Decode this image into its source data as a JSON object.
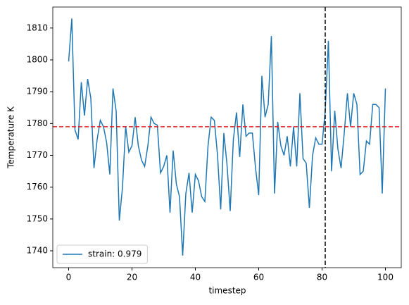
{
  "chart_data": {
    "type": "line",
    "xlabel": "timestep",
    "ylabel": "Temperature K",
    "x": [
      0,
      1,
      2,
      3,
      4,
      5,
      6,
      7,
      8,
      9,
      10,
      11,
      12,
      13,
      14,
      15,
      16,
      17,
      18,
      19,
      20,
      21,
      22,
      23,
      24,
      25,
      26,
      27,
      28,
      29,
      30,
      31,
      32,
      33,
      34,
      35,
      36,
      37,
      38,
      39,
      40,
      41,
      42,
      43,
      44,
      45,
      46,
      47,
      48,
      49,
      50,
      51,
      52,
      53,
      54,
      55,
      56,
      57,
      58,
      59,
      60,
      61,
      62,
      63,
      64,
      65,
      66,
      67,
      68,
      69,
      70,
      71,
      72,
      73,
      74,
      75,
      76,
      77,
      78,
      79,
      80,
      81,
      82,
      83,
      84,
      85,
      86,
      87,
      88,
      89,
      90,
      91,
      92,
      93,
      94,
      95,
      96,
      97,
      98,
      99,
      100
    ],
    "series": [
      {
        "name": "strain: 0.979",
        "color": "#1f77b4",
        "values": [
          1799.5,
          1813,
          1778,
          1775,
          1793,
          1782.5,
          1794,
          1788,
          1766,
          1775,
          1781,
          1779,
          1774,
          1764,
          1791,
          1784,
          1749.5,
          1760,
          1779,
          1771,
          1773,
          1782,
          1773,
          1768.5,
          1766.5,
          1773,
          1782,
          1780,
          1779.5,
          1764.5,
          1766.5,
          1770,
          1752,
          1771.5,
          1761,
          1757,
          1738.5,
          1758,
          1764.5,
          1752,
          1764,
          1762,
          1757,
          1755.5,
          1773,
          1782,
          1781,
          1770,
          1753,
          1777,
          1767,
          1752.5,
          1775,
          1783.5,
          1769.5,
          1786,
          1776,
          1777,
          1777,
          1766,
          1757.5,
          1795,
          1782,
          1786,
          1807.5,
          1758,
          1780.5,
          1773,
          1770,
          1776,
          1766.5,
          1779,
          1766.5,
          1789.5,
          1769,
          1767.5,
          1753.5,
          1770,
          1775.5,
          1773.5,
          1773.5,
          1784,
          1806,
          1765,
          1784,
          1772,
          1766,
          1777,
          1789.5,
          1779,
          1789.5,
          1786,
          1764,
          1765,
          1774.5,
          1773.5,
          1786,
          1786,
          1785,
          1758,
          1791
        ]
      }
    ],
    "hline": {
      "value": 1779,
      "color": "#e41a1c"
    },
    "vline": {
      "value": 81,
      "color": "#000000"
    },
    "xlim": [
      -5,
      105
    ],
    "ylim": [
      1734.7,
      1816.6
    ],
    "xticks": [
      0,
      20,
      40,
      60,
      80,
      100
    ],
    "yticks": [
      1740,
      1750,
      1760,
      1770,
      1780,
      1790,
      1800,
      1810
    ],
    "legend": "lower left"
  }
}
